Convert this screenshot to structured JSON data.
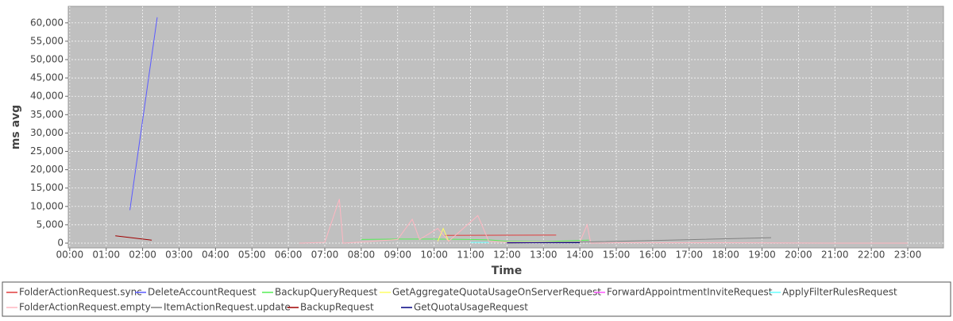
{
  "chart_data": {
    "type": "line",
    "x_label": "Time",
    "y_label": "ms avg",
    "xlim": [
      -0.04,
      23.98
    ],
    "ylim": [
      -1300,
      64500
    ],
    "xticks": [
      {
        "value": 0,
        "label": "00:00"
      },
      {
        "value": 1,
        "label": "01:00"
      },
      {
        "value": 2,
        "label": "02:00"
      },
      {
        "value": 3,
        "label": "03:00"
      },
      {
        "value": 4,
        "label": "04:00"
      },
      {
        "value": 5,
        "label": "05:00"
      },
      {
        "value": 6,
        "label": "06:00"
      },
      {
        "value": 7,
        "label": "07:00"
      },
      {
        "value": 8,
        "label": "08:00"
      },
      {
        "value": 9,
        "label": "09:00"
      },
      {
        "value": 10,
        "label": "10:00"
      },
      {
        "value": 11,
        "label": "11:00"
      },
      {
        "value": 12,
        "label": "12:00"
      },
      {
        "value": 13,
        "label": "13:00"
      },
      {
        "value": 14,
        "label": "14:00"
      },
      {
        "value": 15,
        "label": "15:00"
      },
      {
        "value": 16,
        "label": "16:00"
      },
      {
        "value": 17,
        "label": "17:00"
      },
      {
        "value": 18,
        "label": "18:00"
      },
      {
        "value": 19,
        "label": "19:00"
      },
      {
        "value": 20,
        "label": "20:00"
      },
      {
        "value": 21,
        "label": "21:00"
      },
      {
        "value": 22,
        "label": "22:00"
      },
      {
        "value": 23,
        "label": "23:00"
      }
    ],
    "yticks": [
      0,
      {
        "value": 5000,
        "label": "5,000"
      },
      {
        "value": 10000,
        "label": "10,000"
      },
      {
        "value": 15000,
        "label": "15,000"
      },
      {
        "value": 20000,
        "label": "20,000"
      },
      {
        "value": 25000,
        "label": "25,000"
      },
      {
        "value": 30000,
        "label": "30,000"
      },
      {
        "value": 35000,
        "label": "35,000"
      },
      {
        "value": 40000,
        "label": "40,000"
      },
      {
        "value": 45000,
        "label": "45,000"
      },
      {
        "value": 50000,
        "label": "50,000"
      },
      {
        "value": 55000,
        "label": "55,000"
      },
      {
        "value": 60000,
        "label": "60,000"
      }
    ],
    "grid": true,
    "series": [
      {
        "name": "FolderActionRequest.sync",
        "color": "#e03c3c",
        "x": [
          10.3,
          13.35
        ],
        "values": [
          2100,
          2200
        ]
      },
      {
        "name": "DeleteAccountRequest",
        "color": "#5a5aff",
        "x": [
          1.65,
          2.4
        ],
        "values": [
          9000,
          61500
        ]
      },
      {
        "name": "BackupQueryRequest",
        "color": "#55ee55",
        "x": [
          8.0,
          9.0,
          10.0,
          11.0,
          11.5,
          12.0,
          13.0,
          14.25
        ],
        "values": [
          1000,
          1100,
          1100,
          1000,
          900,
          500,
          400,
          800
        ]
      },
      {
        "name": "GetAggregateQuotaUsageOnServerRequest",
        "color": "#ffff66",
        "x": [
          10.1,
          10.25,
          10.4
        ],
        "values": [
          500,
          4000,
          500
        ]
      },
      {
        "name": "ForwardAppointmentInviteRequest",
        "color": "#ff55ff",
        "x": [
          12.0,
          12.5
        ],
        "values": [
          100,
          150
        ]
      },
      {
        "name": "ApplyFilterRulesRequest",
        "color": "#66ffff",
        "x": [
          11.0,
          11.5
        ],
        "values": [
          200,
          200
        ]
      },
      {
        "name": "FolderActionRequest.empty",
        "color": "#ffb6c1",
        "x": [
          6.3,
          7.0,
          7.4,
          7.5,
          8.0,
          9.0,
          9.4,
          9.6,
          10.1,
          10.4,
          11.2,
          11.5,
          12.0,
          14.0,
          14.2,
          14.3,
          15.0,
          18.0,
          21.0,
          23.0
        ],
        "values": [
          0,
          200,
          12000,
          0,
          300,
          1000,
          6500,
          1000,
          4000,
          500,
          7500,
          500,
          300,
          300,
          5000,
          0,
          100,
          100,
          0,
          0
        ]
      },
      {
        "name": "ItemActionRequest.update",
        "color": "#808080",
        "x": [
          12.0,
          14.0,
          16.0,
          19.25
        ],
        "values": [
          0,
          300,
          700,
          1500
        ]
      },
      {
        "name": "BackupRequest",
        "color": "#a00000",
        "x": [
          1.25,
          2.25
        ],
        "values": [
          2000,
          800
        ]
      },
      {
        "name": "GetQuotaUsageRequest",
        "color": "#000080",
        "x": [
          12.0,
          14.0
        ],
        "values": [
          100,
          100
        ]
      }
    ]
  }
}
